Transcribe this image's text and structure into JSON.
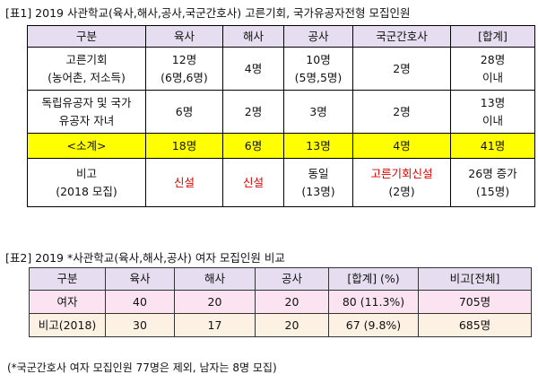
{
  "table1": {
    "title": "[표1] 2019 사관학교(육사,해사,공사,국군간호사) 고른기회, 국가유공자전형 모집인원",
    "header": [
      "구분",
      "육사",
      "해사",
      "공사",
      "국군간호사",
      "[합계]"
    ],
    "rows": [
      [
        [
          "고른기회",
          "(농어촌, 저소득)"
        ],
        [
          "12명",
          "(6명,6명)"
        ],
        [
          "4명"
        ],
        [
          "10명",
          "(5명,5명)"
        ],
        [
          "2명"
        ],
        [
          "28명",
          "이내"
        ]
      ],
      [
        [
          "독립유공자 및 국가",
          "유공자 자녀"
        ],
        [
          "6명"
        ],
        [
          "2명"
        ],
        [
          "3명"
        ],
        [
          "2명"
        ],
        [
          "13명",
          "이내"
        ]
      ],
      [
        [
          "<소계>"
        ],
        [
          "18명"
        ],
        [
          "6명"
        ],
        [
          "13명"
        ],
        [
          "4명"
        ],
        [
          "41명"
        ]
      ],
      [
        [
          "비고",
          "(2018 모집)"
        ],
        [
          "신설"
        ],
        [
          "신설"
        ],
        [
          "동일",
          "(13명)"
        ],
        [
          "고른기회신설",
          "(2명)"
        ],
        [
          "26명 증가",
          "(15명)"
        ]
      ]
    ]
  },
  "table2": {
    "title": "[표2] 2019 *사관학교(육사,해사,공사) 여자 모집인원 비교",
    "header": [
      "구분",
      "육사",
      "해사",
      "공사",
      "[합계] (%)",
      "비고[전체]"
    ],
    "rows": [
      [
        "여자",
        "40",
        "20",
        "20",
        "80 (11.3%)",
        "705명"
      ],
      [
        "비고(2018)",
        "30",
        "17",
        "20",
        "67 (9.8%)",
        "685명"
      ]
    ]
  },
  "footnote": "(*국군간호사 여자 모집인원 77명은 제외, 남자는 8명 모집)"
}
